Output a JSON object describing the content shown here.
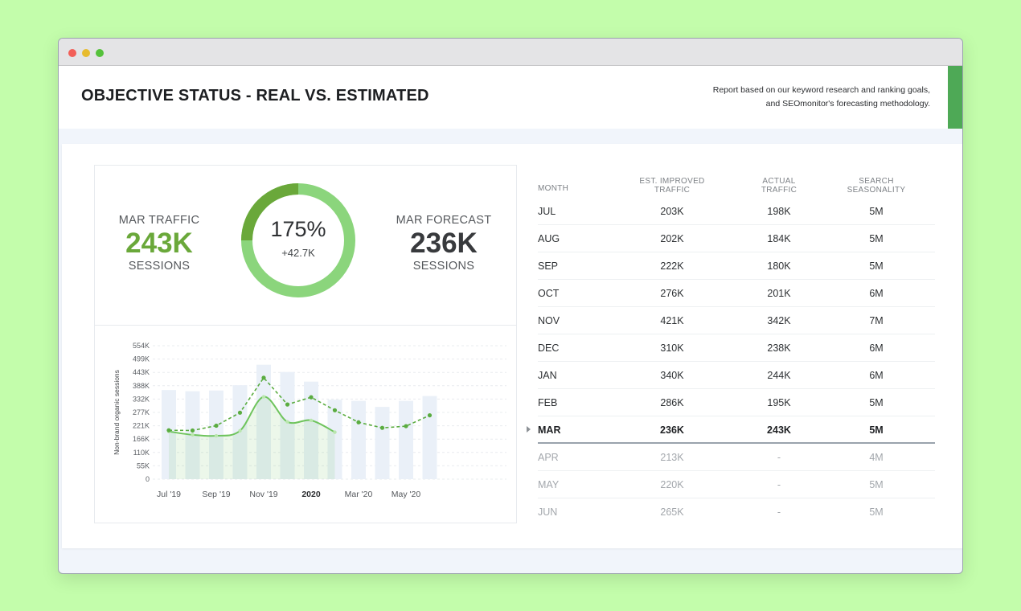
{
  "header": {
    "title": "OBJECTIVE STATUS - REAL VS. ESTIMATED",
    "note_line1": "Report based on our keyword research and ranking goals,",
    "note_line2": "and SEOmonitor's forecasting methodology.",
    "accent_color": "#4ea956"
  },
  "kpi": {
    "traffic_label": "MAR TRAFFIC",
    "traffic_value": "243K",
    "traffic_unit": "SESSIONS",
    "traffic_color": "#6aa83a",
    "forecast_label": "MAR FORECAST",
    "forecast_value": "236K",
    "forecast_unit": "SESSIONS",
    "forecast_color": "#383a3d"
  },
  "donut": {
    "percent_text": "175%",
    "delta_text": "+42.7K",
    "progress_fraction": 0.25,
    "progress_color": "#6aa83a",
    "remainder_color": "#8bd57c"
  },
  "chart_data": {
    "type": "bar",
    "ylabel": "Non-brand organic sessions",
    "ylim": [
      0,
      554
    ],
    "y_ticks": [
      "554K",
      "499K",
      "443K",
      "388K",
      "332K",
      "277K",
      "221K",
      "166K",
      "110K",
      "55K",
      "0"
    ],
    "x_ticks": [
      {
        "label": "Jul '19",
        "index": 0,
        "bold": false
      },
      {
        "label": "Sep '19",
        "index": 2,
        "bold": false
      },
      {
        "label": "Nov '19",
        "index": 4,
        "bold": false
      },
      {
        "label": "2020",
        "index": 6,
        "bold": true
      },
      {
        "label": "Mar '20",
        "index": 8,
        "bold": false
      },
      {
        "label": "May '20",
        "index": 10,
        "bold": false
      }
    ],
    "categories": [
      "Jul '19",
      "Aug '19",
      "Sep '19",
      "Oct '19",
      "Nov '19",
      "Dec '19",
      "Jan '20",
      "Feb '20",
      "Mar '20",
      "Apr '20",
      "May '20",
      "Jun '20"
    ],
    "series": [
      {
        "kind": "bars",
        "values": [
          370,
          365,
          368,
          390,
          475,
          445,
          405,
          330,
          325,
          300,
          325,
          345
        ],
        "color": "#eaf0f8"
      },
      {
        "kind": "area",
        "values": [
          198,
          184,
          180,
          201,
          342,
          238,
          244,
          195,
          null,
          null,
          null,
          null
        ],
        "color": "#6fc45d"
      },
      {
        "kind": "dashed",
        "values": [
          203,
          202,
          222,
          276,
          421,
          310,
          340,
          286,
          236,
          213,
          220,
          265
        ],
        "color": "#5aac40"
      }
    ]
  },
  "table": {
    "headers": {
      "month": "MONTH",
      "est_line1": "EST. IMPROVED",
      "est_line2": "TRAFFIC",
      "act_line1": "ACTUAL",
      "act_line2": "TRAFFIC",
      "sea_line1": "SEARCH",
      "sea_line2": "SEASONALITY"
    },
    "rows": [
      {
        "month": "JUL",
        "est": "203K",
        "act": "198K",
        "sea": "5M"
      },
      {
        "month": "AUG",
        "est": "202K",
        "act": "184K",
        "sea": "5M"
      },
      {
        "month": "SEP",
        "est": "222K",
        "act": "180K",
        "sea": "5M"
      },
      {
        "month": "OCT",
        "est": "276K",
        "act": "201K",
        "sea": "6M"
      },
      {
        "month": "NOV",
        "est": "421K",
        "act": "342K",
        "sea": "7M"
      },
      {
        "month": "DEC",
        "est": "310K",
        "act": "238K",
        "sea": "6M"
      },
      {
        "month": "JAN",
        "est": "340K",
        "act": "244K",
        "sea": "6M"
      },
      {
        "month": "FEB",
        "est": "286K",
        "act": "195K",
        "sea": "5M"
      },
      {
        "month": "MAR",
        "est": "236K",
        "act": "243K",
        "sea": "5M"
      },
      {
        "month": "APR",
        "est": "213K",
        "act": "-",
        "sea": "4M"
      },
      {
        "month": "MAY",
        "est": "220K",
        "act": "-",
        "sea": "5M"
      },
      {
        "month": "JUN",
        "est": "265K",
        "act": "-",
        "sea": "5M"
      }
    ]
  }
}
